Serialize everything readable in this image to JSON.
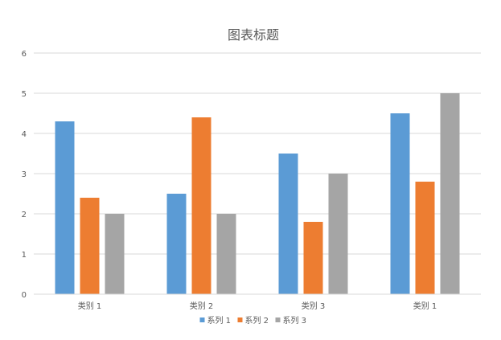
{
  "chart_data": {
    "type": "bar",
    "title": "图表标题",
    "categories": [
      "类别 1",
      "类别 2",
      "类别 3",
      "类别 1"
    ],
    "series": [
      {
        "name": "系列 1",
        "color": "#5B9BD5",
        "values": [
          4.3,
          2.5,
          3.5,
          4.5
        ]
      },
      {
        "name": "系列 2",
        "color": "#ED7D31",
        "values": [
          2.4,
          4.4,
          1.8,
          2.8
        ]
      },
      {
        "name": "系列 3",
        "color": "#A5A5A5",
        "values": [
          2.0,
          2.0,
          3.0,
          5.0
        ]
      }
    ],
    "ylim": [
      0,
      6
    ],
    "yticks": [
      "0",
      "1",
      "2",
      "3",
      "4",
      "5",
      "6"
    ],
    "grid": true,
    "legend_position": "bottom"
  }
}
